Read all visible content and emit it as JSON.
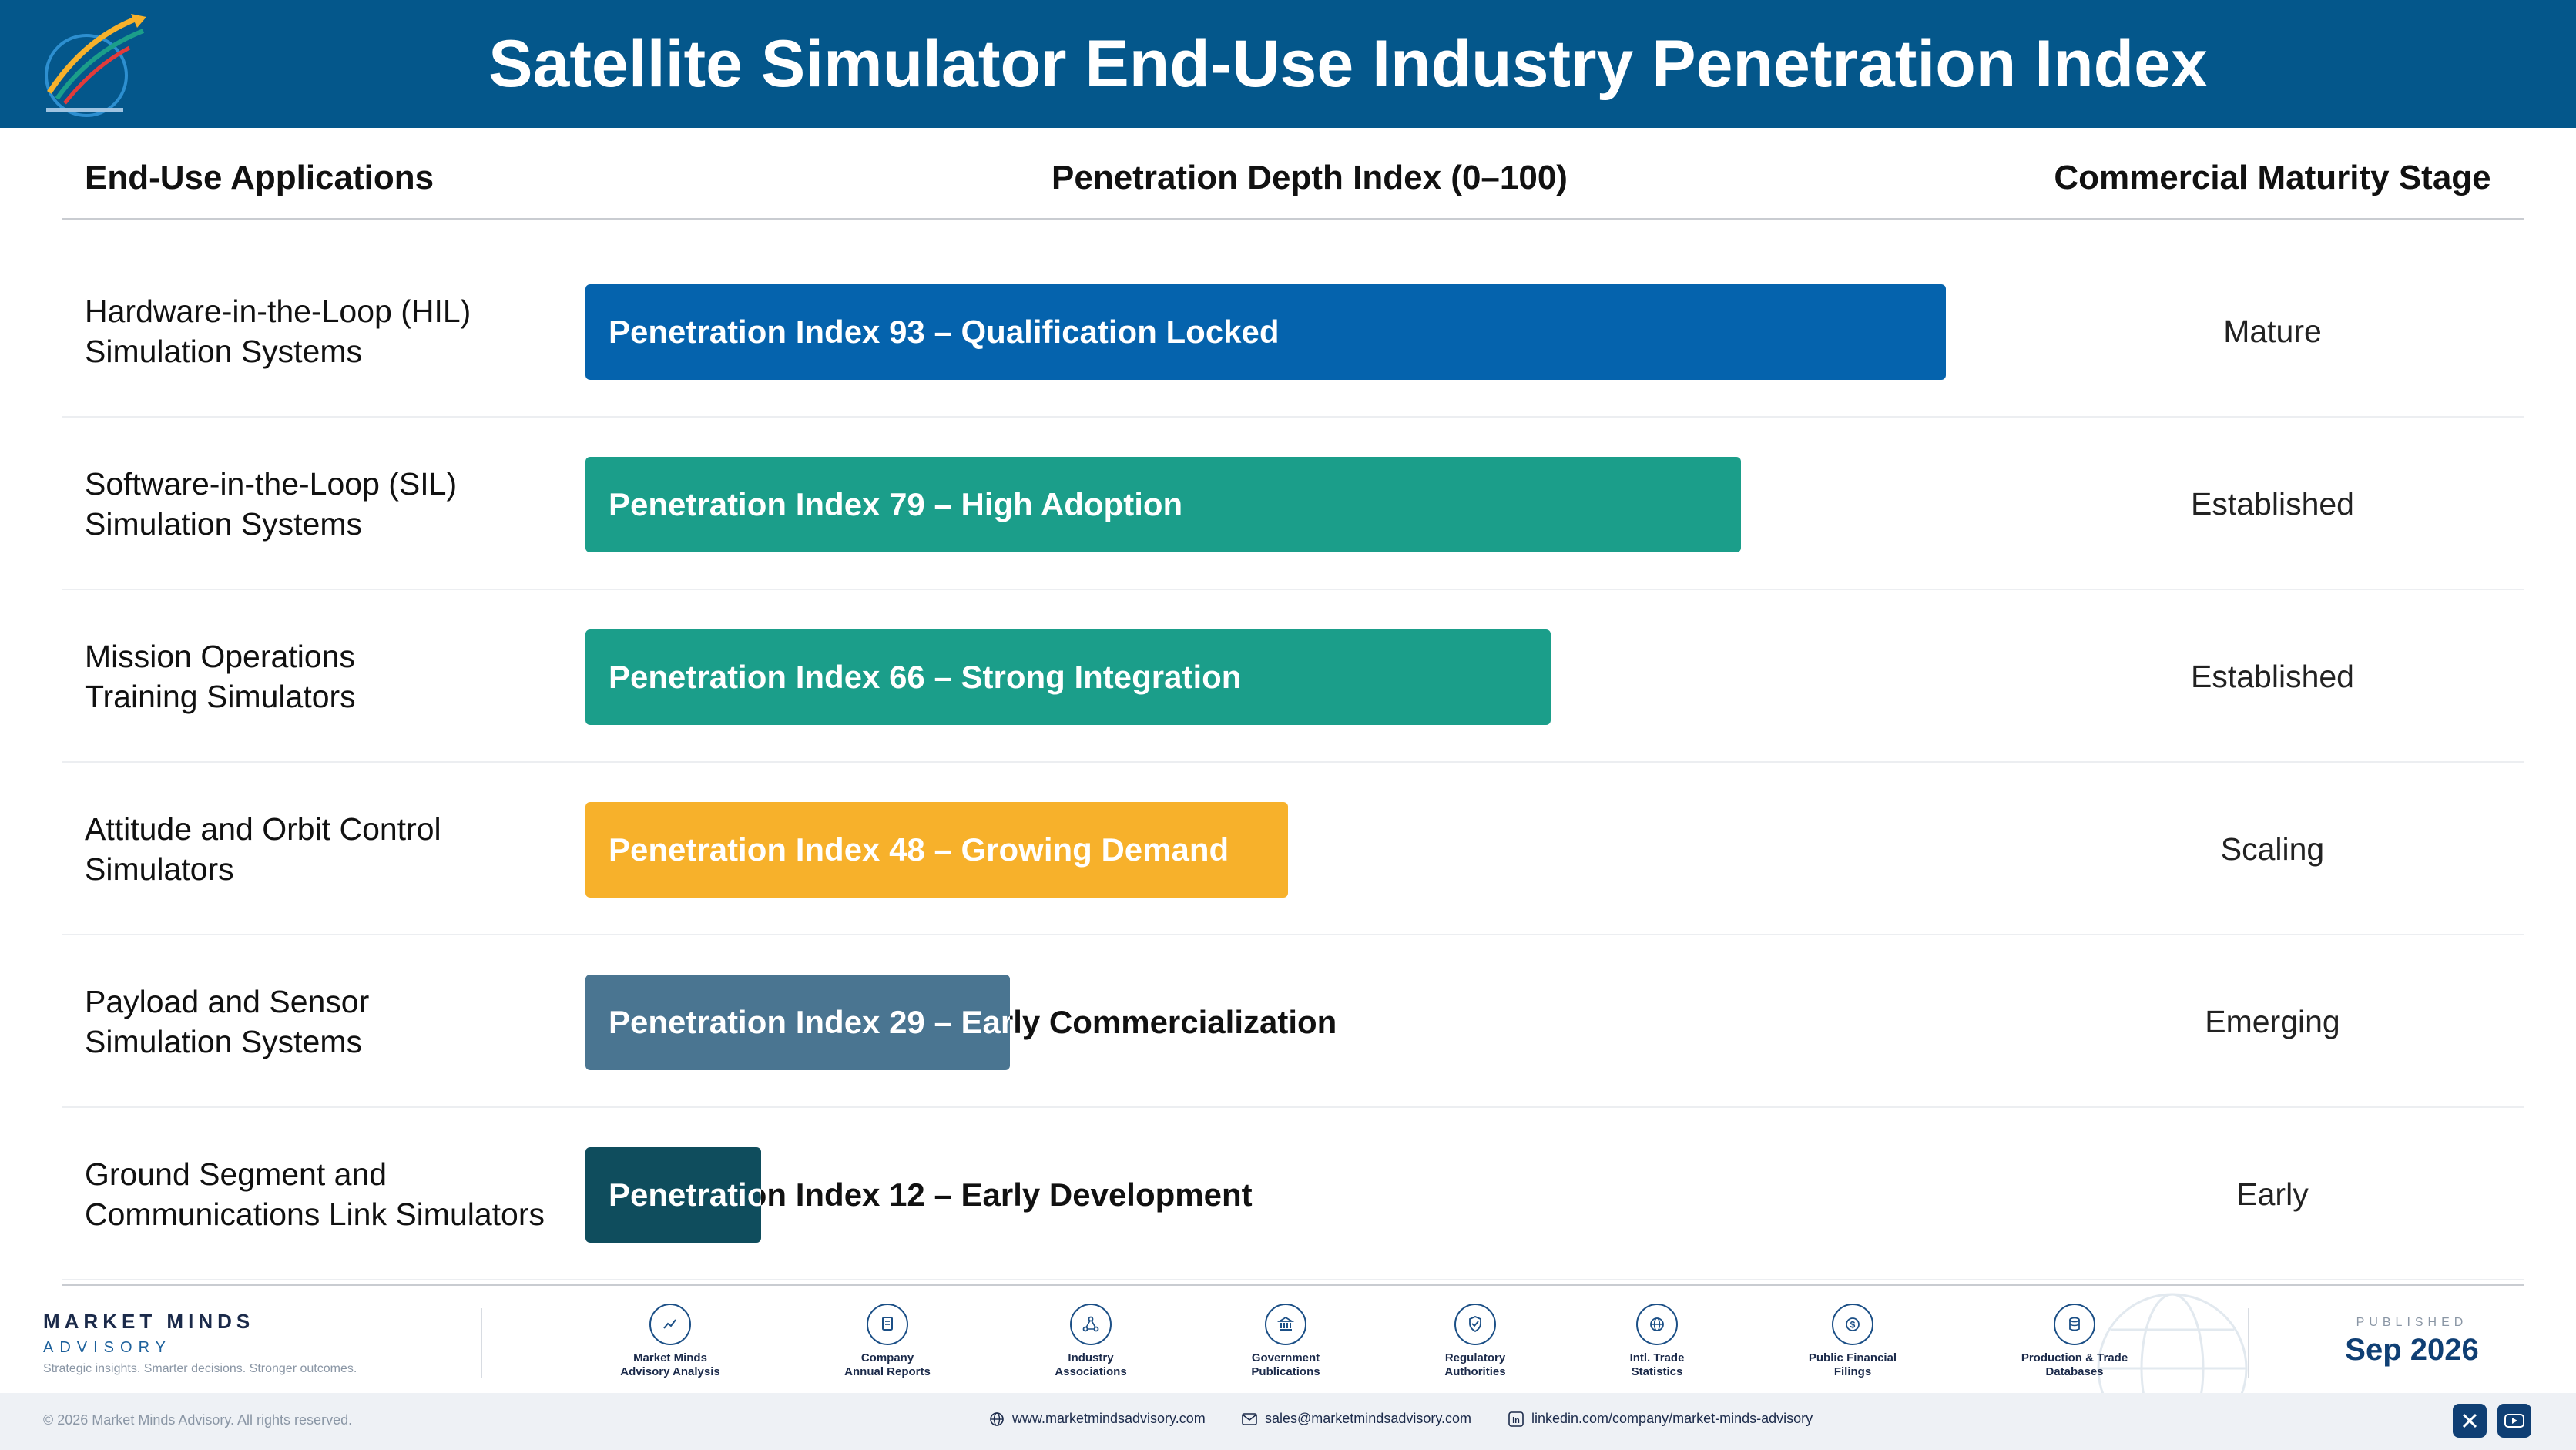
{
  "header": {
    "title": "Satellite Simulator End-Use Industry Penetration Index"
  },
  "columns": {
    "applications": "End-Use Applications",
    "index": "Penetration Depth Index (0–100)",
    "stage": "Commercial Maturity Stage"
  },
  "chart_data": {
    "type": "bar",
    "orientation": "horizontal",
    "xlim": [
      0,
      100
    ],
    "categories": [
      "Hardware-in-the-Loop (HIL)\nSimulation Systems",
      "Software-in-the-Loop (SIL)\nSimulation Systems",
      "Mission Operations\nTraining Simulators",
      "Attitude and Orbit Control\nSimulators",
      "Payload and Sensor\nSimulation Systems",
      "Ground Segment and\nCommunications Link Simulators"
    ],
    "values": [
      93,
      79,
      66,
      48,
      29,
      12
    ],
    "bar_labels": [
      "Penetration Index 93 – Qualification Locked",
      "Penetration Index 79 – High Adoption",
      "Penetration Index 66 – Strong Integration",
      "Penetration Index 48 – Growing Demand",
      "Penetration Index 29 – Early Commercialization",
      "Penetration Index 12 – Early Development"
    ],
    "stages": [
      "Mature",
      "Established",
      "Established",
      "Scaling",
      "Emerging",
      "Early"
    ],
    "colors": [
      "#0563ad",
      "#1b9e8a",
      "#1b9e8a",
      "#f7b12b",
      "#4a7591",
      "#0f4d5d"
    ]
  },
  "footer": {
    "brand_name": "MARKET MINDS",
    "brand_sub": "ADVISORY",
    "brand_tag": "Strategic insights. Smarter decisions. Stronger outcomes.",
    "sources": [
      {
        "label": "Market Minds\nAdvisory Analysis",
        "icon": "trend-chart-icon"
      },
      {
        "label": "Company\nAnnual Reports",
        "icon": "document-icon"
      },
      {
        "label": "Industry\nAssociations",
        "icon": "network-icon"
      },
      {
        "label": "Government\nPublications",
        "icon": "government-building-icon"
      },
      {
        "label": "Regulatory\nAuthorities",
        "icon": "shield-check-icon"
      },
      {
        "label": "Intl. Trade\nStatistics",
        "icon": "globe-icon"
      },
      {
        "label": "Public Financial\nFilings",
        "icon": "dollar-coin-icon"
      },
      {
        "label": "Production & Trade\nDatabases",
        "icon": "database-icon"
      }
    ],
    "published_label": "PUBLISHED",
    "published_date": "Sep 2026",
    "copyright": "© 2026 Market Minds Advisory. All rights reserved.",
    "website": "www.marketmindsadvisory.com",
    "email": "sales@marketmindsadvisory.com",
    "linkedin": "linkedin.com/company/market-minds-advisory"
  }
}
